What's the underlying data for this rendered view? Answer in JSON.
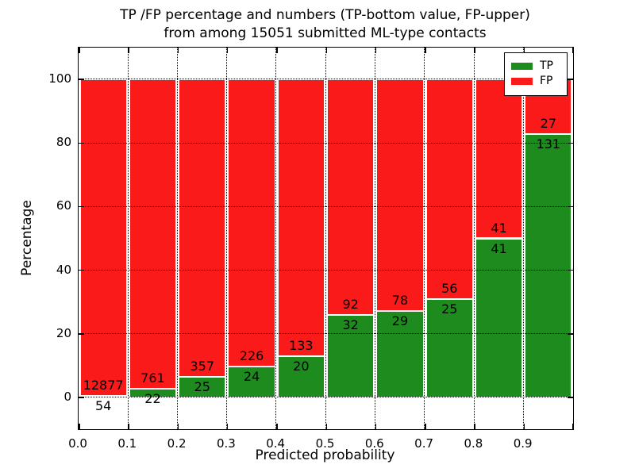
{
  "chart_data": {
    "type": "bar",
    "stacked": true,
    "normalized_to_percent": true,
    "title_line1": "TP /FP percentage and numbers (TP-bottom value, FP-upper)",
    "title_line2": "from among 15051 submitted ML-type contacts",
    "xlabel": "Predicted probability",
    "ylabel": "Percentage",
    "x_tick_labels": [
      "0.0",
      "0.1",
      "0.2",
      "0.3",
      "0.4",
      "0.5",
      "0.6",
      "0.7",
      "0.8",
      "0.9"
    ],
    "y_tick_labels": [
      "0",
      "20",
      "40",
      "60",
      "80",
      "100"
    ],
    "y_tick_values": [
      0,
      20,
      40,
      60,
      80,
      100
    ],
    "xlim": [
      0.0,
      1.0
    ],
    "ylim": [
      -10,
      110
    ],
    "grid": true,
    "legend": {
      "position": "upper right",
      "entries": [
        {
          "label": "TP",
          "color": "#1e8b1e"
        },
        {
          "label": "FP",
          "color": "#fb1a1a"
        }
      ]
    },
    "series_note": "Each bar: TP count at bottom (green), FP count above (red), stacked to 100%",
    "bars": [
      {
        "bin": "0.0-0.1",
        "tp": 54,
        "fp": 12877
      },
      {
        "bin": "0.1-0.2",
        "tp": 22,
        "fp": 761
      },
      {
        "bin": "0.2-0.3",
        "tp": 25,
        "fp": 357
      },
      {
        "bin": "0.3-0.4",
        "tp": 24,
        "fp": 226
      },
      {
        "bin": "0.4-0.5",
        "tp": 20,
        "fp": 133
      },
      {
        "bin": "0.5-0.6",
        "tp": 32,
        "fp": 92
      },
      {
        "bin": "0.6-0.7",
        "tp": 29,
        "fp": 78
      },
      {
        "bin": "0.7-0.8",
        "tp": 25,
        "fp": 56
      },
      {
        "bin": "0.8-0.9",
        "tp": 41,
        "fp": 41
      },
      {
        "bin": "0.9-1.0",
        "tp": 131,
        "fp": 27
      }
    ]
  },
  "colors": {
    "tp_green": "#1e8b1e",
    "fp_red": "#fb1a1a",
    "grid": "#000000",
    "background": "#ffffff",
    "text": "#000000"
  }
}
